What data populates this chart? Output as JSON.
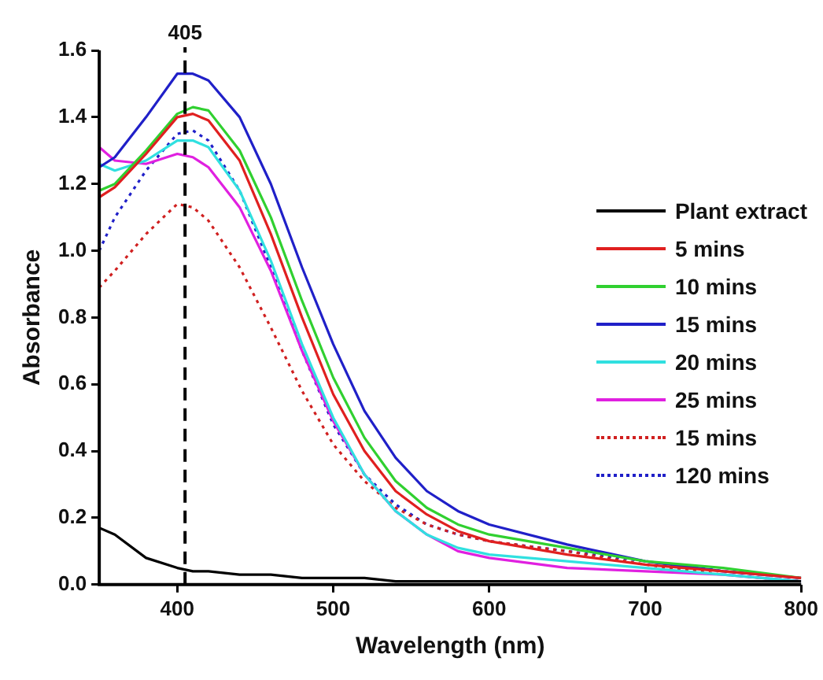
{
  "chart_data": {
    "type": "line",
    "xlabel": "Wavelength (nm)",
    "ylabel": "Absorbance",
    "x": [
      350,
      360,
      380,
      400,
      410,
      420,
      440,
      460,
      480,
      500,
      520,
      540,
      560,
      580,
      600,
      650,
      700,
      750,
      800
    ],
    "series": [
      {
        "name": "Plant extract",
        "color": "#000000",
        "line_style": "solid",
        "values": [
          0.17,
          0.15,
          0.08,
          0.05,
          0.04,
          0.04,
          0.03,
          0.03,
          0.02,
          0.02,
          0.02,
          0.01,
          0.01,
          0.01,
          0.01,
          0.01,
          0.01,
          0.01,
          0.01
        ]
      },
      {
        "name": "5 mins",
        "color": "#e02020",
        "line_style": "solid",
        "values": [
          1.16,
          1.19,
          1.29,
          1.4,
          1.41,
          1.39,
          1.27,
          1.05,
          0.8,
          0.57,
          0.4,
          0.28,
          0.21,
          0.16,
          0.13,
          0.09,
          0.06,
          0.04,
          0.02
        ]
      },
      {
        "name": "10 mins",
        "color": "#30d030",
        "line_style": "solid",
        "values": [
          1.18,
          1.2,
          1.3,
          1.41,
          1.43,
          1.42,
          1.3,
          1.1,
          0.85,
          0.62,
          0.44,
          0.31,
          0.23,
          0.18,
          0.15,
          0.11,
          0.07,
          0.05,
          0.02
        ]
      },
      {
        "name": "15 mins",
        "color": "#2020c8",
        "line_style": "solid",
        "values": [
          1.25,
          1.28,
          1.4,
          1.53,
          1.53,
          1.51,
          1.4,
          1.2,
          0.95,
          0.72,
          0.52,
          0.38,
          0.28,
          0.22,
          0.18,
          0.12,
          0.07,
          0.04,
          0.02
        ]
      },
      {
        "name": "20 mins",
        "color": "#30e0e0",
        "line_style": "solid",
        "values": [
          1.26,
          1.24,
          1.27,
          1.33,
          1.33,
          1.31,
          1.18,
          0.97,
          0.72,
          0.5,
          0.33,
          0.22,
          0.15,
          0.11,
          0.09,
          0.07,
          0.05,
          0.03,
          0.01
        ]
      },
      {
        "name": "25 mins",
        "color": "#e020e0",
        "line_style": "solid",
        "values": [
          1.31,
          1.27,
          1.26,
          1.29,
          1.28,
          1.25,
          1.13,
          0.94,
          0.7,
          0.49,
          0.33,
          0.22,
          0.15,
          0.1,
          0.08,
          0.05,
          0.04,
          0.03,
          0.01
        ]
      },
      {
        "name": "15 mins",
        "color": "#d02020",
        "line_style": "dotted",
        "values": [
          0.89,
          0.94,
          1.05,
          1.14,
          1.13,
          1.09,
          0.95,
          0.77,
          0.58,
          0.42,
          0.31,
          0.23,
          0.18,
          0.15,
          0.13,
          0.1,
          0.06,
          0.03,
          0.01
        ]
      },
      {
        "name": "120 mins",
        "color": "#2020c8",
        "line_style": "dotted",
        "values": [
          1.0,
          1.1,
          1.24,
          1.35,
          1.36,
          1.33,
          1.18,
          0.95,
          0.7,
          0.48,
          0.33,
          0.24,
          0.18,
          0.15,
          0.13,
          0.1,
          0.07,
          0.04,
          0.02
        ]
      }
    ],
    "xlim": [
      350,
      800
    ],
    "xticks": [
      400,
      500,
      600,
      700,
      800
    ],
    "ylim": [
      0,
      1.6
    ],
    "yticks": [
      {
        "value": 0,
        "label": "0.0"
      },
      {
        "value": 0.2,
        "label": "0.2"
      },
      {
        "value": 0.4,
        "label": "0.4"
      },
      {
        "value": 0.6,
        "label": "0.6"
      },
      {
        "value": 0.8,
        "label": "0.8"
      },
      {
        "value": 1,
        "label": "1.0"
      },
      {
        "value": 1.2,
        "label": "1.2"
      },
      {
        "value": 1.4,
        "label": "1.4"
      },
      {
        "value": 1.6,
        "label": "1.6"
      }
    ],
    "ref_lines": [
      {
        "axis": "x",
        "value": 405,
        "label": "405",
        "color": "#000000",
        "line_style": "dashed"
      }
    ],
    "grid": false,
    "legend": "right",
    "marker": "none"
  }
}
